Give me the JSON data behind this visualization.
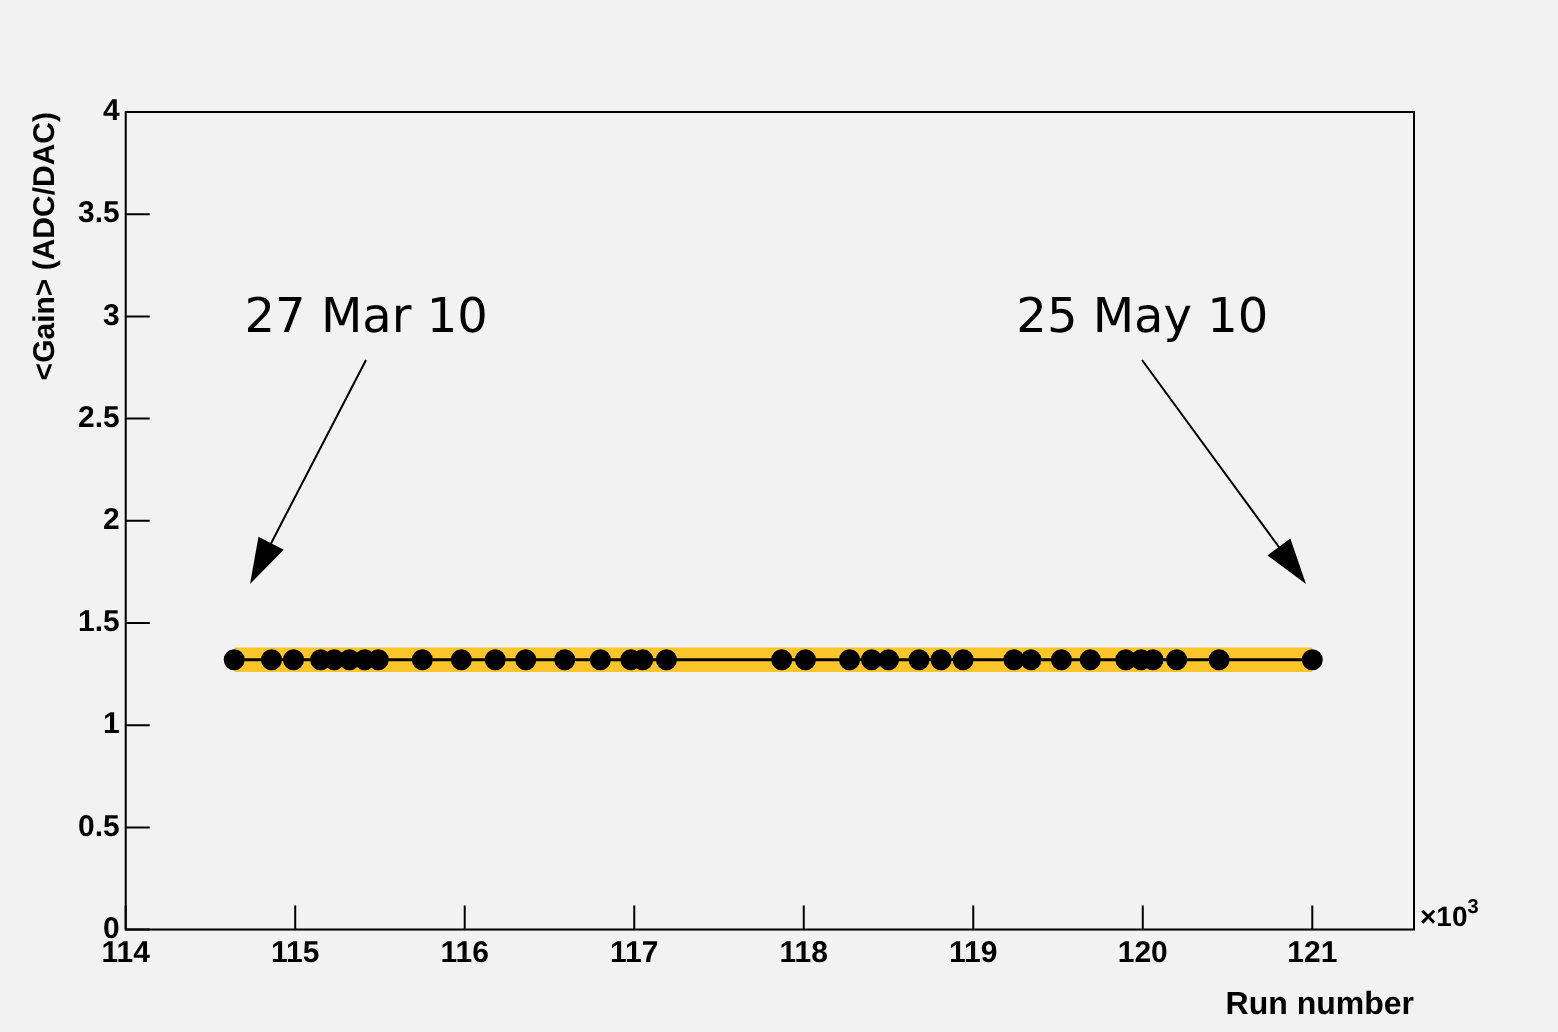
{
  "chart_data": {
    "type": "line",
    "xlabel": "Run number",
    "ylabel": "<Gain> (ADC/DAC)",
    "x": [
      114.64,
      114.86,
      114.99,
      115.15,
      115.23,
      115.32,
      115.41,
      115.49,
      115.75,
      115.98,
      116.18,
      116.36,
      116.59,
      116.8,
      116.98,
      117.05,
      117.19,
      117.87,
      118.01,
      118.27,
      118.4,
      118.5,
      118.68,
      118.81,
      118.94,
      119.24,
      119.34,
      119.52,
      119.69,
      119.9,
      119.99,
      120.06,
      120.2,
      120.45,
      121
    ],
    "series": [
      {
        "color": "#000000",
        "values": [
          1.32,
          1.32,
          1.32,
          1.32,
          1.32,
          1.32,
          1.32,
          1.32,
          1.32,
          1.32,
          1.32,
          1.32,
          1.32,
          1.32,
          1.32,
          1.32,
          1.32,
          1.32,
          1.32,
          1.32,
          1.32,
          1.32,
          1.32,
          1.32,
          1.32,
          1.32,
          1.32,
          1.32,
          1.32,
          1.32,
          1.32,
          1.32,
          1.32,
          1.32,
          1.32
        ],
        "lower": [
          1.26,
          1.26,
          1.26,
          1.26,
          1.26,
          1.26,
          1.26,
          1.26,
          1.26,
          1.26,
          1.26,
          1.26,
          1.26,
          1.26,
          1.26,
          1.26,
          1.26,
          1.26,
          1.26,
          1.26,
          1.26,
          1.26,
          1.26,
          1.26,
          1.26,
          1.26,
          1.26,
          1.26,
          1.26,
          1.26,
          1.26,
          1.26,
          1.26,
          1.26,
          1.26
        ],
        "upper": [
          1.38,
          1.38,
          1.38,
          1.38,
          1.38,
          1.38,
          1.38,
          1.38,
          1.38,
          1.38,
          1.38,
          1.38,
          1.38,
          1.38,
          1.38,
          1.38,
          1.38,
          1.38,
          1.38,
          1.38,
          1.38,
          1.38,
          1.38,
          1.38,
          1.38,
          1.38,
          1.38,
          1.38,
          1.38,
          1.38,
          1.38,
          1.38,
          1.38,
          1.38,
          1.38
        ]
      }
    ],
    "xlim": [
      114,
      121.6
    ],
    "xticks": [
      114,
      115,
      116,
      117,
      118,
      119,
      120,
      121
    ],
    "ylim": [
      0,
      4
    ],
    "yticks": [
      0,
      0.5,
      1,
      1.5,
      2,
      2.5,
      3,
      3.5,
      4
    ],
    "marker": "circle",
    "line_style": "solid",
    "grid": false,
    "legend": false,
    "annotations": [
      "27 Mar 10",
      "25 May 10",
      "×10$^{3}$"
    ]
  }
}
